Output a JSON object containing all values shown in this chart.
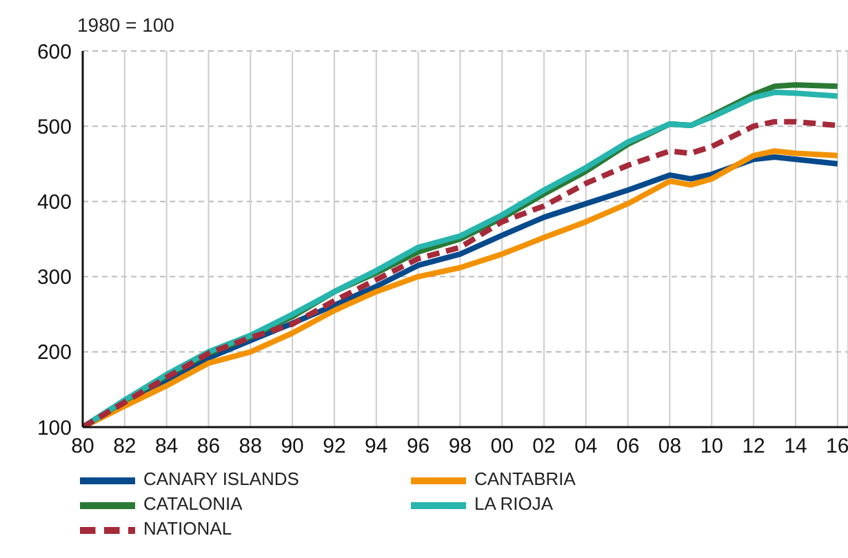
{
  "chart_data": {
    "type": "line",
    "ylabel": "1980 = 100",
    "x": [
      1980,
      1982,
      1984,
      1986,
      1988,
      1990,
      1992,
      1994,
      1996,
      1998,
      2000,
      2002,
      2004,
      2006,
      2008,
      2009,
      2010,
      2012,
      2013,
      2014,
      2016
    ],
    "xlim": [
      1980,
      2016.5
    ],
    "xticks": [
      {
        "value": 1980,
        "label": "80"
      },
      {
        "value": 1982,
        "label": "82"
      },
      {
        "value": 1984,
        "label": "84"
      },
      {
        "value": 1986,
        "label": "86"
      },
      {
        "value": 1988,
        "label": "88"
      },
      {
        "value": 1990,
        "label": "90"
      },
      {
        "value": 1992,
        "label": "92"
      },
      {
        "value": 1994,
        "label": "94"
      },
      {
        "value": 1996,
        "label": "96"
      },
      {
        "value": 1998,
        "label": "98"
      },
      {
        "value": 2000,
        "label": "00"
      },
      {
        "value": 2002,
        "label": "02"
      },
      {
        "value": 2004,
        "label": "04"
      },
      {
        "value": 2006,
        "label": "06"
      },
      {
        "value": 2008,
        "label": "08"
      },
      {
        "value": 2010,
        "label": "10"
      },
      {
        "value": 2012,
        "label": "12"
      },
      {
        "value": 2014,
        "label": "14"
      },
      {
        "value": 2016,
        "label": "16"
      }
    ],
    "ylim": [
      100,
      600
    ],
    "yticks": [
      100,
      200,
      300,
      400,
      500,
      600
    ],
    "grid": true,
    "legend": "bottom",
    "series": [
      {
        "name": "CANARY ISLANDS",
        "color": "#064a8c",
        "values": [
          100,
          132,
          162,
          192,
          215,
          238,
          262,
          287,
          315,
          330,
          355,
          379,
          397,
          415,
          435,
          430,
          436,
          456,
          459,
          456,
          450
        ]
      },
      {
        "name": "CANTABRIA",
        "color": "#f39200",
        "values": [
          100,
          128,
          155,
          185,
          200,
          225,
          255,
          280,
          300,
          312,
          330,
          352,
          373,
          397,
          427,
          422,
          430,
          461,
          467,
          464,
          461
        ]
      },
      {
        "name": "CATALONIA",
        "color": "#2a7a36",
        "values": [
          100,
          135,
          168,
          198,
          220,
          247,
          280,
          305,
          333,
          350,
          378,
          410,
          440,
          476,
          503,
          501,
          514,
          542,
          553,
          555,
          553
        ]
      },
      {
        "name": "LA RIOJA",
        "color": "#27b5ad",
        "values": [
          100,
          136,
          170,
          200,
          222,
          250,
          280,
          308,
          339,
          354,
          382,
          415,
          445,
          479,
          503,
          501,
          512,
          538,
          545,
          544,
          540
        ]
      },
      {
        "name": "NATIONAL",
        "color": "#a52a3a",
        "line_style": "dashed",
        "values": [
          100,
          133,
          166,
          198,
          219,
          237,
          268,
          296,
          324,
          339,
          373,
          394,
          424,
          448,
          467,
          464,
          473,
          500,
          506,
          506,
          501
        ]
      }
    ]
  }
}
